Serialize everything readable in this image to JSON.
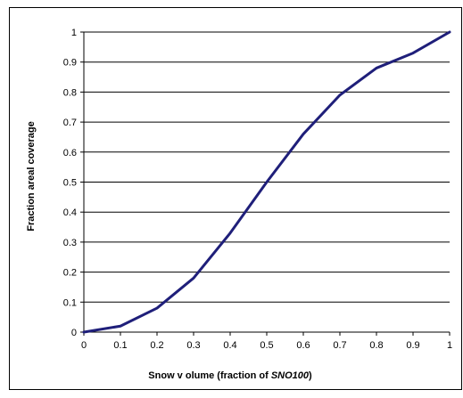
{
  "chart_data": {
    "type": "line",
    "title": "",
    "xlabel_parts": [
      "Snow v olume (fraction of ",
      "SNO100",
      ")"
    ],
    "ylabel": "Fraction areal coverage",
    "xlim": [
      0,
      1
    ],
    "ylim": [
      0,
      1
    ],
    "x_ticks": [
      "0",
      "0.1",
      "0.2",
      "0.3",
      "0.4",
      "0.5",
      "0.6",
      "0.7",
      "0.8",
      "0.9",
      "1"
    ],
    "y_ticks": [
      "0",
      "0.1",
      "0.2",
      "0.3",
      "0.4",
      "0.5",
      "0.6",
      "0.7",
      "0.8",
      "0.9",
      "1"
    ],
    "grid": "horizontal",
    "legend": "none",
    "line_color": "#1f1f7a",
    "series": [
      {
        "x": [
          0,
          0.1,
          0.2,
          0.3,
          0.4,
          0.5,
          0.6,
          0.7,
          0.8,
          0.9,
          1.0
        ],
        "y": [
          0,
          0.02,
          0.08,
          0.18,
          0.33,
          0.5,
          0.66,
          0.79,
          0.88,
          0.93,
          1.0
        ]
      }
    ]
  }
}
